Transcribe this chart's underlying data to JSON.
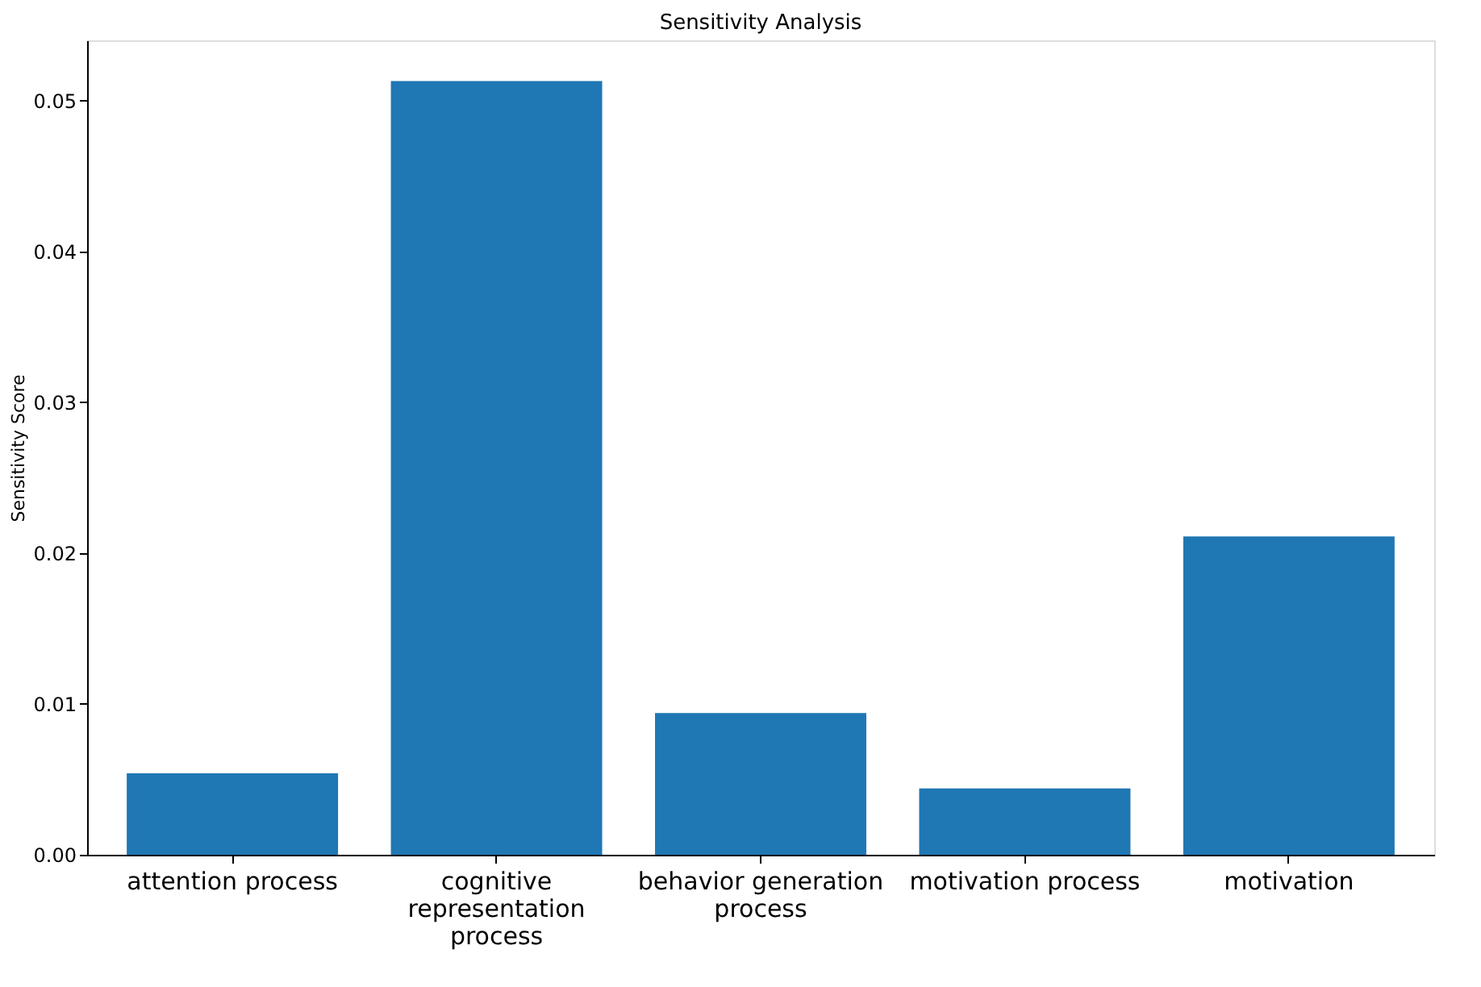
{
  "chart_data": {
    "type": "bar",
    "title": "Sensitivity Analysis",
    "ylabel": "Sensitivity Score",
    "categories": [
      "attention process",
      "cognitive\nrepresentation\nprocess",
      "behavior generation\nprocess",
      "motivation process",
      "motivation"
    ],
    "values": [
      0.0054,
      0.0513,
      0.0094,
      0.0044,
      0.0211
    ],
    "color": "#1f77b4",
    "ylim": [
      0,
      0.054
    ],
    "yticks": [
      {
        "value": 0,
        "label": "0.00"
      },
      {
        "value": 0.01,
        "label": "0.01"
      },
      {
        "value": 0.02,
        "label": "0.02"
      },
      {
        "value": 0.03,
        "label": "0.03"
      },
      {
        "value": 0.04,
        "label": "0.04"
      },
      {
        "value": 0.05,
        "label": "0.05"
      }
    ],
    "grid": false
  }
}
